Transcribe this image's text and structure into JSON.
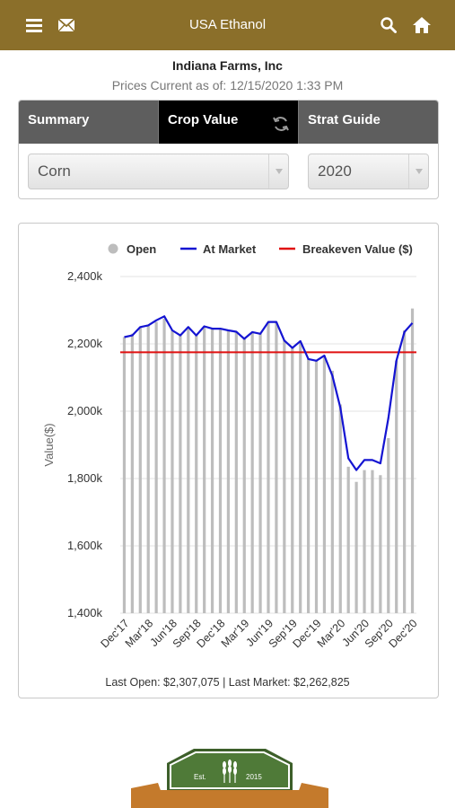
{
  "header": {
    "title": "USA Ethanol"
  },
  "company": {
    "name": "Indiana Farms, Inc",
    "prices_current": "Prices Current as of: 12/15/2020 1:33 PM"
  },
  "tabs": [
    {
      "label": "Summary",
      "active": false
    },
    {
      "label": "Crop Value",
      "active": true
    },
    {
      "label": "Strat Guide",
      "active": false
    }
  ],
  "filters": {
    "crop": "Corn",
    "year": "2020"
  },
  "logo": {
    "est": "Est.",
    "year": "2015"
  },
  "colors": {
    "brand": "#8b6f2a",
    "at_market": "#1414d2",
    "breakeven": "#e01010",
    "open": "#bdbdbd"
  },
  "chart_data": {
    "type": "bar+line",
    "ylabel": "Value($)",
    "ylim": [
      1400000,
      2400000
    ],
    "yticks": [
      "1,400k",
      "1,600k",
      "1,800k",
      "2,000k",
      "2,200k",
      "2,400k"
    ],
    "ytick_values": [
      1400000,
      1600000,
      1800000,
      2000000,
      2200000,
      2400000
    ],
    "grid": true,
    "legend_position": "top",
    "legend": [
      "Open",
      "At Market",
      "Breakeven Value ($)"
    ],
    "x_tick_labels": [
      "Dec'17",
      "Mar'18",
      "Jun'18",
      "Sep'18",
      "Dec'18",
      "Mar'19",
      "Jun'19",
      "Sep'19",
      "Dec'19",
      "Mar'20",
      "Jun'20",
      "Sep'20",
      "Dec'20"
    ],
    "months": [
      "Dec'17",
      "Jan'18",
      "Feb'18",
      "Mar'18",
      "Apr'18",
      "May'18",
      "Jun'18",
      "Jul'18",
      "Aug'18",
      "Sep'18",
      "Oct'18",
      "Nov'18",
      "Dec'18",
      "Jan'19",
      "Feb'19",
      "Mar'19",
      "Apr'19",
      "May'19",
      "Jun'19",
      "Jul'19",
      "Aug'19",
      "Sep'19",
      "Oct'19",
      "Nov'19",
      "Dec'19",
      "Jan'20",
      "Feb'20",
      "Mar'20",
      "Apr'20",
      "May'20",
      "Jun'20",
      "Jul'20",
      "Aug'20",
      "Sep'20",
      "Oct'20",
      "Nov'20",
      "Dec'20"
    ],
    "series": [
      {
        "name": "Open",
        "type": "bar",
        "values": [
          2220000,
          2230000,
          2250000,
          2255000,
          2265000,
          2275000,
          2240000,
          2225000,
          2245000,
          2225000,
          2250000,
          2245000,
          2245000,
          2240000,
          2235000,
          2220000,
          2235000,
          2230000,
          2265000,
          2265000,
          2210000,
          2190000,
          2205000,
          2155000,
          2150000,
          2165000,
          2120000,
          2020000,
          1835000,
          1790000,
          1825000,
          1825000,
          1810000,
          1920000,
          2150000,
          2240000,
          2305000
        ]
      },
      {
        "name": "At Market",
        "type": "line",
        "values": [
          2220000,
          2225000,
          2250000,
          2255000,
          2270000,
          2282000,
          2240000,
          2225000,
          2250000,
          2225000,
          2252000,
          2245000,
          2245000,
          2240000,
          2236000,
          2215000,
          2235000,
          2230000,
          2265000,
          2265000,
          2210000,
          2188000,
          2208000,
          2155000,
          2150000,
          2165000,
          2105000,
          2010000,
          1860000,
          1825000,
          1855000,
          1855000,
          1845000,
          1980000,
          2150000,
          2235000,
          2262000
        ]
      },
      {
        "name": "Breakeven Value ($)",
        "type": "line",
        "values": [
          2175000,
          2175000,
          2175000,
          2175000,
          2175000,
          2175000,
          2175000,
          2175000,
          2175000,
          2175000,
          2175000,
          2175000,
          2175000,
          2175000,
          2175000,
          2175000,
          2175000,
          2175000,
          2175000,
          2175000,
          2175000,
          2175000,
          2175000,
          2175000,
          2175000,
          2175000,
          2175000,
          2175000,
          2175000,
          2175000,
          2175000,
          2175000,
          2175000,
          2175000,
          2175000,
          2175000,
          2175000
        ]
      }
    ],
    "footer": "Last Open: $2,307,075 | Last Market: $2,262,825"
  }
}
